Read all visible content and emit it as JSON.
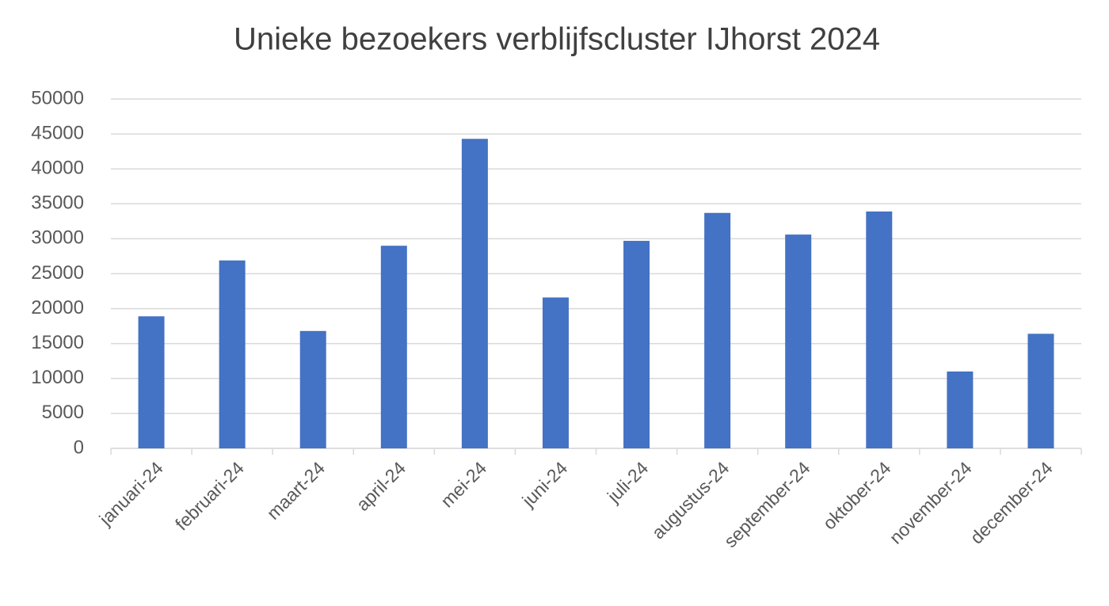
{
  "chart_data": {
    "type": "bar",
    "title": "Unieke bezoekers verblijfscluster IJhorst 2024",
    "categories": [
      "januari-24",
      "februari-24",
      "maart-24",
      "april-24",
      "mei-24",
      "juni-24",
      "juli-24",
      "augustus-24",
      "september-24",
      "oktober-24",
      "november-24",
      "december-24"
    ],
    "values": [
      18900,
      26900,
      16800,
      29000,
      44300,
      21600,
      29700,
      33700,
      30600,
      33900,
      11000,
      16400
    ],
    "color": "#4472c4",
    "ylim": [
      0,
      50000
    ],
    "yticks": [
      0,
      5000,
      10000,
      15000,
      20000,
      25000,
      30000,
      35000,
      40000,
      45000,
      50000
    ],
    "grid": true
  }
}
